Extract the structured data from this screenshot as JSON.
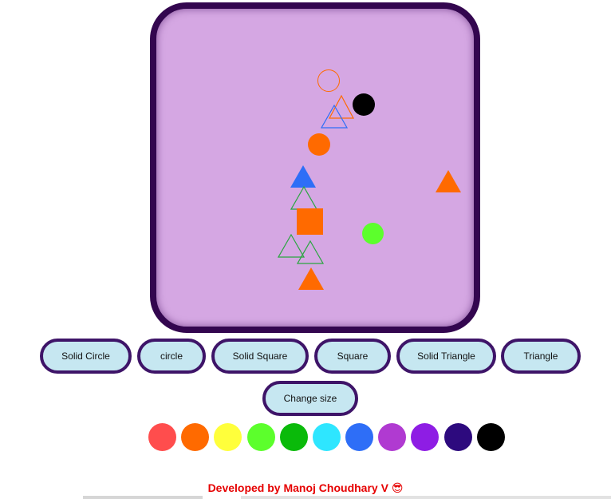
{
  "canvas": {
    "background": "#d5a7e3",
    "border_color": "#33064f",
    "shapes": [
      {
        "type": "circle",
        "color": "#ff6a00"
      },
      {
        "type": "solid-circle",
        "color": "#000000"
      },
      {
        "type": "triangle",
        "color": "#ff6a00"
      },
      {
        "type": "triangle",
        "color": "#2e6ef7"
      },
      {
        "type": "solid-circle",
        "color": "#ff6a00"
      },
      {
        "type": "solid-triangle",
        "color": "#2e6ef7"
      },
      {
        "type": "triangle",
        "color": "#2aa640"
      },
      {
        "type": "solid-triangle",
        "color": "#ff6a00"
      },
      {
        "type": "solid-square",
        "color": "#ff6a00"
      },
      {
        "type": "solid-circle",
        "color": "#5cff2c"
      },
      {
        "type": "triangle",
        "color": "#2aa640"
      },
      {
        "type": "triangle",
        "color": "#2aa640"
      },
      {
        "type": "solid-triangle",
        "color": "#ff6a00"
      }
    ]
  },
  "buttons": {
    "solid_circle": "Solid Circle",
    "circle": "circle",
    "solid_square": "Solid Square",
    "square": "Square",
    "solid_triangle": "Solid Triangle",
    "triangle": "Triangle",
    "change_size": "Change size"
  },
  "palette": [
    {
      "name": "red",
      "color": "#ff4d4d"
    },
    {
      "name": "orange",
      "color": "#ff6a00"
    },
    {
      "name": "yellow",
      "color": "#ffff3b"
    },
    {
      "name": "lime",
      "color": "#5cff2c"
    },
    {
      "name": "green",
      "color": "#0aba0a"
    },
    {
      "name": "cyan",
      "color": "#2ee6ff"
    },
    {
      "name": "blue",
      "color": "#2e6ef7"
    },
    {
      "name": "purple",
      "color": "#b03ad1"
    },
    {
      "name": "violet",
      "color": "#8e1de4"
    },
    {
      "name": "indigo",
      "color": "#2d0a7e"
    },
    {
      "name": "black",
      "color": "#000000"
    }
  ],
  "footer": {
    "text": "Developed by Manoj Choudhary V",
    "emoji": "😎",
    "color": "#e60000"
  }
}
